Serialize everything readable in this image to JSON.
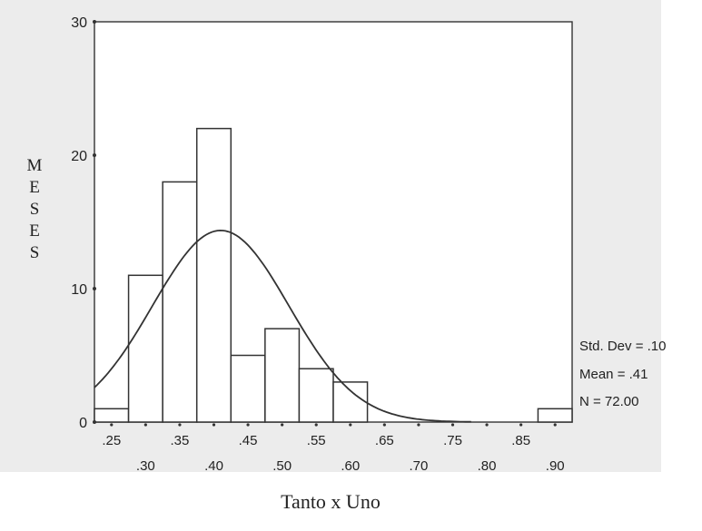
{
  "chart_data": {
    "type": "bar",
    "subtype": "histogram",
    "xlabel": "Tanto x Uno",
    "ylabel": "MESES",
    "ylim": [
      0,
      30
    ],
    "xlim": [
      0.225,
      0.925
    ],
    "y_ticks": [
      0,
      10,
      20,
      30
    ],
    "x_ticks_upper": [
      ".25",
      ".35",
      ".45",
      ".55",
      ".65",
      ".75",
      ".85"
    ],
    "x_ticks_lower": [
      ".30",
      ".40",
      ".50",
      ".60",
      ".70",
      ".80",
      ".90"
    ],
    "bin_width": 0.05,
    "bins": [
      {
        "center": 0.25,
        "count": 1
      },
      {
        "center": 0.3,
        "count": 11
      },
      {
        "center": 0.35,
        "count": 18
      },
      {
        "center": 0.4,
        "count": 22
      },
      {
        "center": 0.45,
        "count": 5
      },
      {
        "center": 0.5,
        "count": 7
      },
      {
        "center": 0.55,
        "count": 4
      },
      {
        "center": 0.6,
        "count": 3
      },
      {
        "center": 0.65,
        "count": 0
      },
      {
        "center": 0.7,
        "count": 0
      },
      {
        "center": 0.75,
        "count": 0
      },
      {
        "center": 0.8,
        "count": 0
      },
      {
        "center": 0.85,
        "count": 0
      },
      {
        "center": 0.9,
        "count": 1
      }
    ],
    "normal_curve": {
      "mean": 0.41,
      "std_dev": 0.1,
      "n": 72
    },
    "stats": [
      {
        "label": "Std. Dev = .10"
      },
      {
        "label": "Mean = .41"
      },
      {
        "label": "N = 72.00"
      }
    ],
    "grid": false
  },
  "colors": {
    "background": "#ececec",
    "bar_fill": "#ffffff",
    "line": "#333333"
  }
}
